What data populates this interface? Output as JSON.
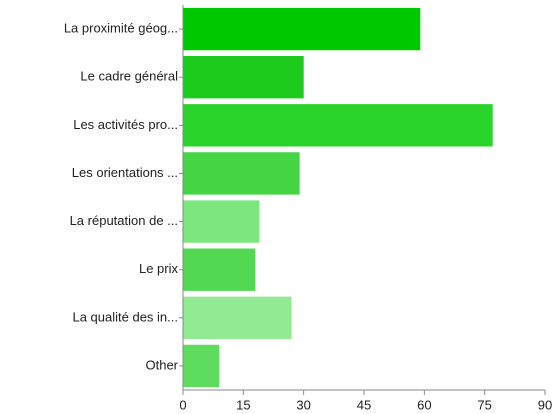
{
  "chart_data": {
    "type": "hbar",
    "categories": [
      "La proximité géog...",
      "Le cadre général",
      "Les activités pro...",
      "Les orientations ...",
      "La réputation de ...",
      "Le prix",
      "La qualité des in...",
      "Other"
    ],
    "values": [
      59,
      30,
      77,
      29,
      19,
      18,
      27,
      9
    ],
    "colors": [
      "#00c800",
      "#1ccb1c",
      "#2ad42a",
      "#44d444",
      "#7ee67e",
      "#52d852",
      "#92ea92",
      "#5edc5e"
    ],
    "xlim": [
      0,
      90
    ],
    "xticks": [
      0,
      15,
      30,
      45,
      60,
      75,
      90
    ],
    "grid": false
  }
}
